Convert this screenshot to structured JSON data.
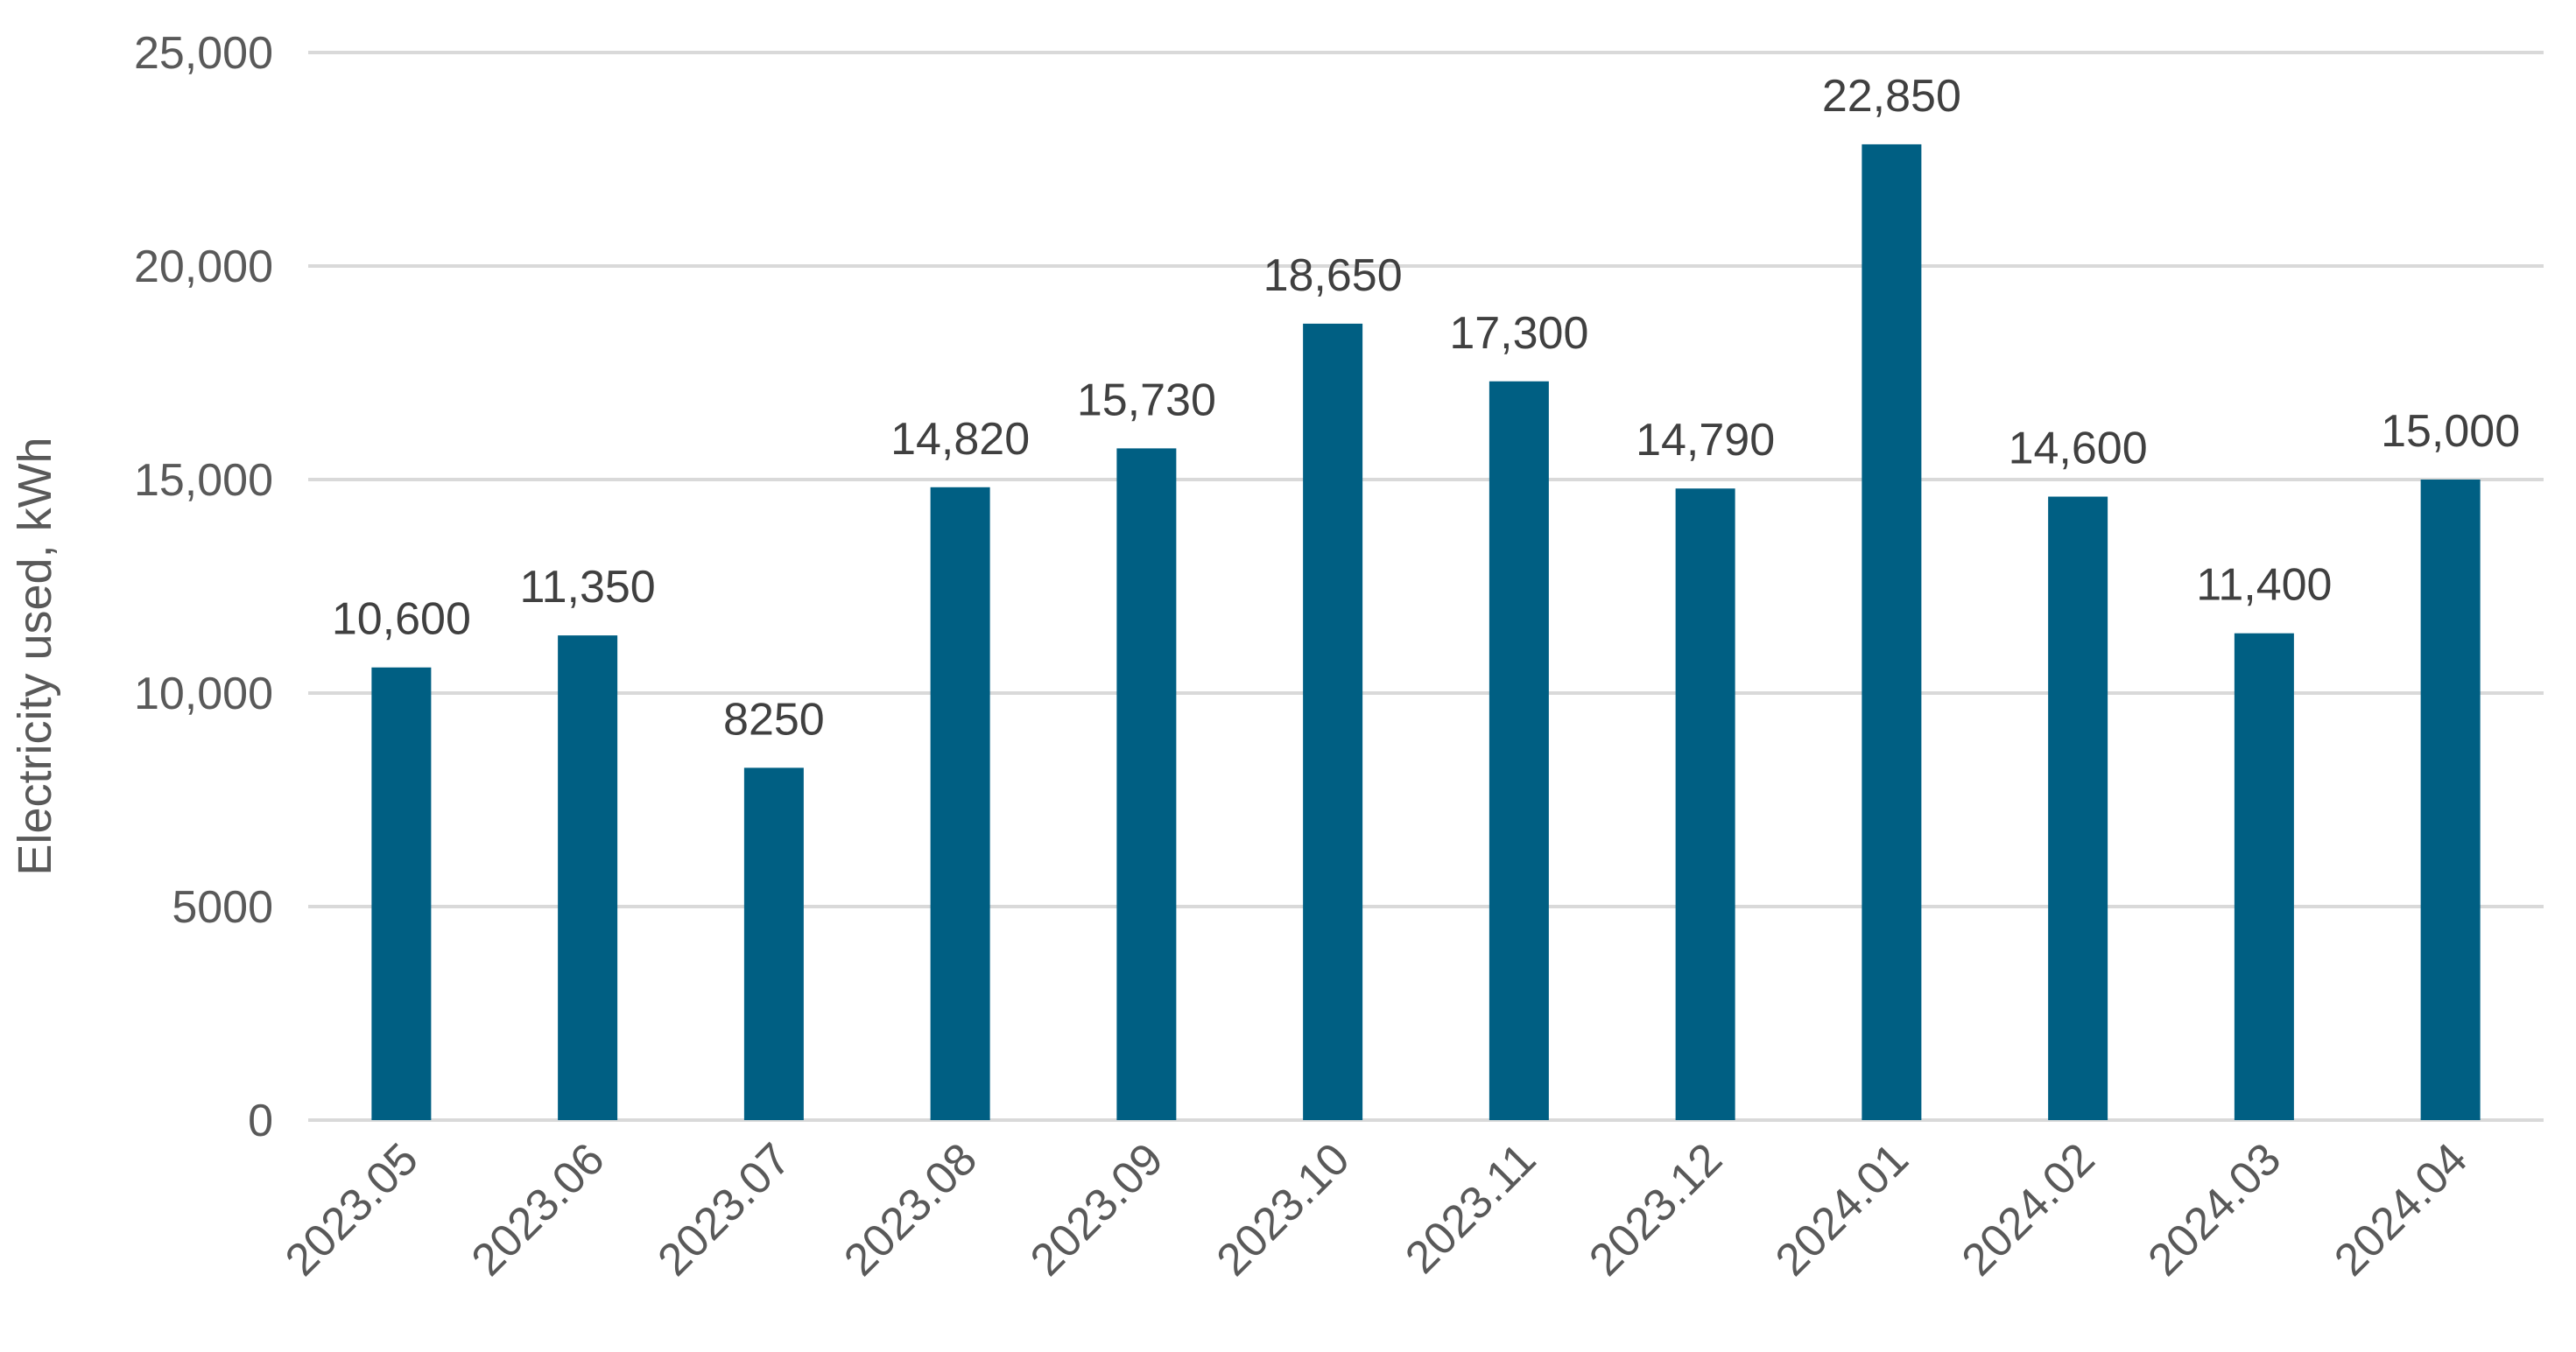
{
  "chart_data": {
    "type": "bar",
    "categories": [
      "2023.05",
      "2023.06",
      "2023.07",
      "2023.08",
      "2023.09",
      "2023.10",
      "2023.11",
      "2023.12",
      "2024.01",
      "2024.02",
      "2024.03",
      "2024.04"
    ],
    "values": [
      10600,
      11350,
      8250,
      14820,
      15730,
      18650,
      17300,
      14790,
      22850,
      14600,
      11400,
      15000
    ],
    "data_labels": [
      "10,600",
      "11,350",
      "8250",
      "14,820",
      "15,730",
      "18,650",
      "17,300",
      "14,790",
      "22,850",
      "14,600",
      "11,400",
      "15,000"
    ],
    "title": "",
    "xlabel": "",
    "ylabel": "Electricity used, kWh",
    "ylim": [
      0,
      25000
    ],
    "yticks": [
      0,
      5000,
      10000,
      15000,
      20000,
      25000
    ],
    "ytick_labels": [
      "0",
      "5000",
      "10,000",
      "15,000",
      "20,000",
      "25,000"
    ],
    "grid": true,
    "legend": "none",
    "bar_color": "#005f83"
  }
}
